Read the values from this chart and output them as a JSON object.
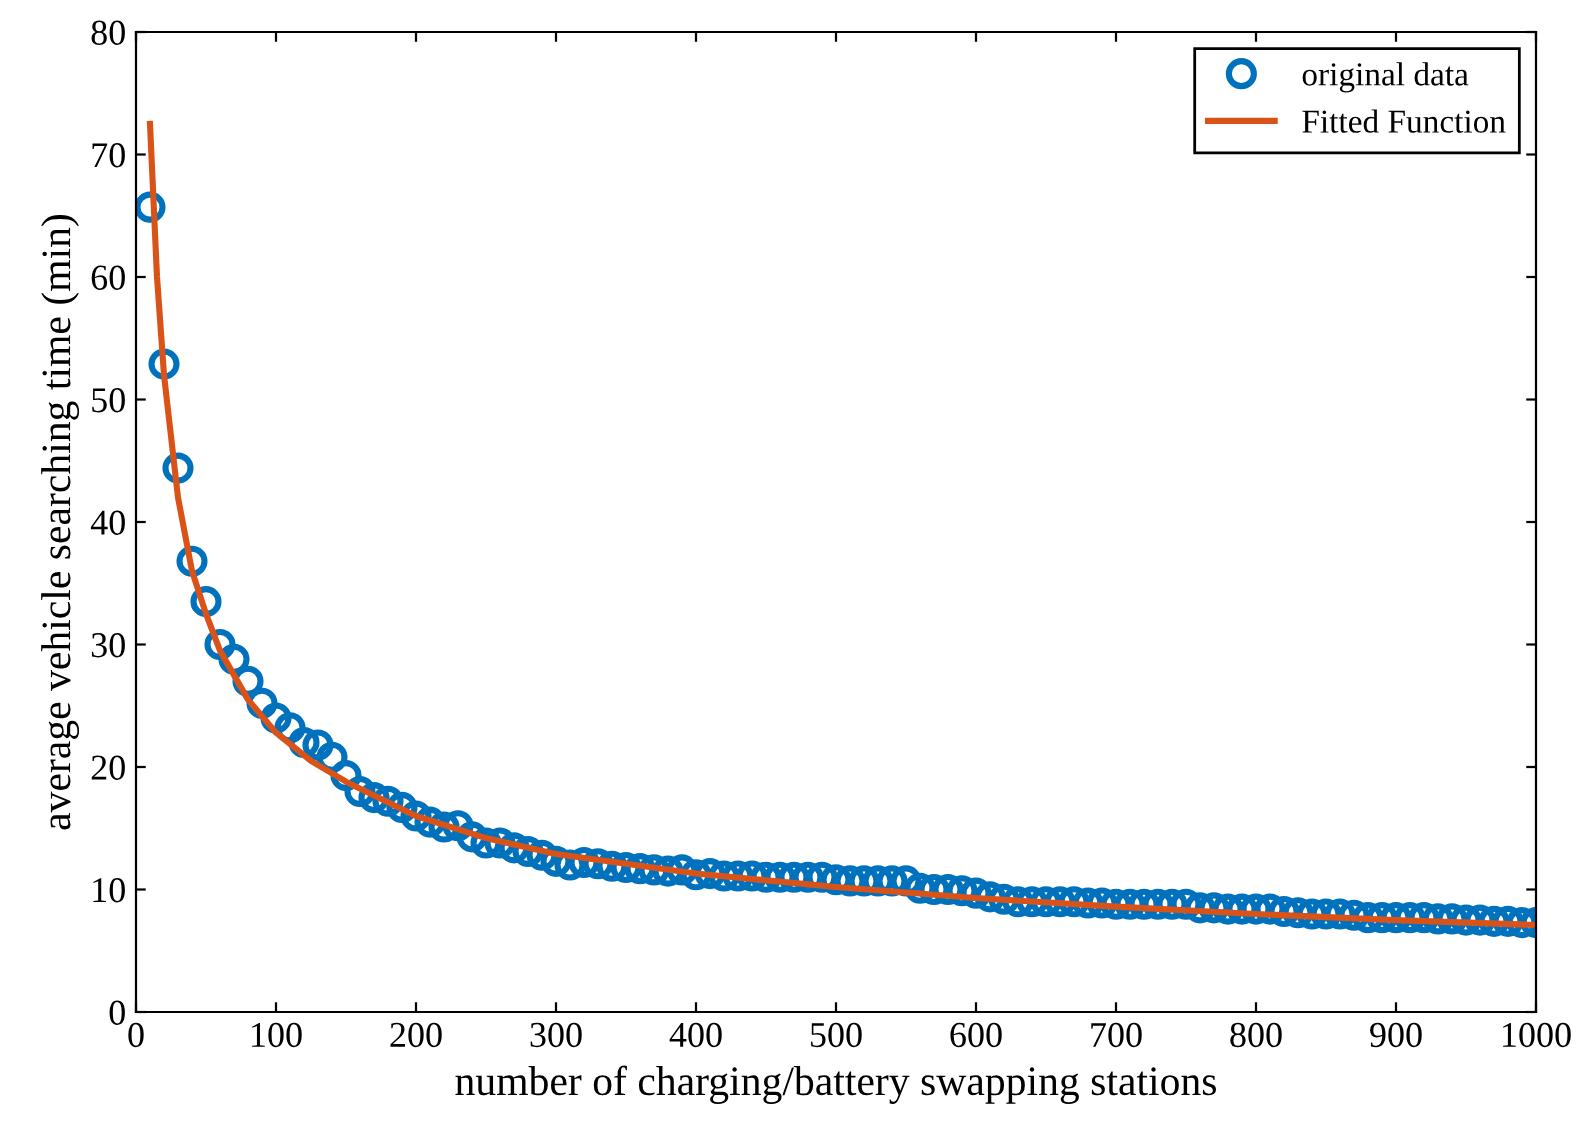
{
  "chart_data": {
    "type": "scatter",
    "xlabel": "number of charging/battery swapping stations",
    "ylabel": "average vehicle searching time (min)",
    "xlim": [
      0,
      1000
    ],
    "xticks": [
      0,
      100,
      200,
      300,
      400,
      500,
      600,
      700,
      800,
      900,
      1000
    ],
    "ylim": [
      0,
      80
    ],
    "yticks": [
      0,
      10,
      20,
      30,
      40,
      50,
      60,
      70,
      80
    ],
    "grid": false,
    "legend": "top right",
    "series": [
      {
        "name": "original data",
        "marker": "circle",
        "color": "#0072bd",
        "x": [
          10,
          20,
          30,
          40,
          50,
          60,
          70,
          80,
          90,
          100,
          110,
          120,
          130,
          140,
          150,
          160,
          170,
          180,
          190,
          200,
          210,
          220,
          230,
          240,
          250,
          260,
          270,
          280,
          290,
          300,
          310,
          320,
          330,
          340,
          350,
          360,
          370,
          380,
          390,
          400,
          410,
          420,
          430,
          440,
          450,
          460,
          470,
          480,
          490,
          500,
          510,
          520,
          530,
          540,
          550,
          560,
          570,
          580,
          590,
          600,
          610,
          620,
          630,
          640,
          650,
          660,
          670,
          680,
          690,
          700,
          710,
          720,
          730,
          740,
          750,
          760,
          770,
          780,
          790,
          800,
          810,
          820,
          830,
          840,
          850,
          860,
          870,
          880,
          890,
          900,
          910,
          920,
          930,
          940,
          950,
          960,
          970,
          980,
          990,
          1000
        ],
        "values": [
          65.7,
          52.9,
          44.4,
          36.8,
          33.5,
          30.0,
          28.8,
          27.0,
          25.2,
          24.0,
          23.2,
          22.0,
          21.8,
          20.8,
          19.3,
          18.0,
          17.5,
          17.2,
          16.7,
          16.0,
          15.5,
          15.1,
          15.2,
          14.3,
          13.8,
          13.8,
          13.4,
          13.1,
          12.8,
          12.3,
          12.0,
          12.2,
          12.1,
          11.9,
          11.8,
          11.7,
          11.6,
          11.5,
          11.6,
          11.2,
          11.3,
          11.1,
          11.1,
          11.1,
          11.0,
          11.0,
          11.0,
          11.0,
          11.0,
          10.8,
          10.7,
          10.7,
          10.7,
          10.7,
          10.7,
          10.1,
          10.0,
          10.0,
          9.9,
          9.7,
          9.4,
          9.2,
          9.0,
          9.0,
          9.0,
          9.0,
          9.0,
          8.9,
          8.9,
          8.8,
          8.8,
          8.8,
          8.8,
          8.8,
          8.8,
          8.5,
          8.5,
          8.4,
          8.4,
          8.4,
          8.4,
          8.2,
          8.1,
          8.0,
          8.0,
          8.0,
          7.9,
          7.7,
          7.7,
          7.7,
          7.7,
          7.7,
          7.6,
          7.6,
          7.5,
          7.5,
          7.4,
          7.4,
          7.3,
          7.3
        ]
      },
      {
        "name": "Fitted Function",
        "type": "line",
        "line_style": "solid",
        "color": "#d95319",
        "x": [
          10,
          15,
          20,
          30,
          40,
          50,
          60,
          80,
          100,
          125,
          150,
          200,
          250,
          300,
          400,
          500,
          600,
          700,
          800,
          900,
          1000
        ],
        "values": [
          72.5,
          60,
          52,
          42,
          36,
          32.5,
          29.5,
          25.5,
          22.8,
          20.5,
          18.8,
          16.0,
          14.2,
          12.9,
          11.3,
          10.2,
          9.3,
          8.6,
          8.0,
          7.5,
          7.1
        ]
      }
    ]
  }
}
